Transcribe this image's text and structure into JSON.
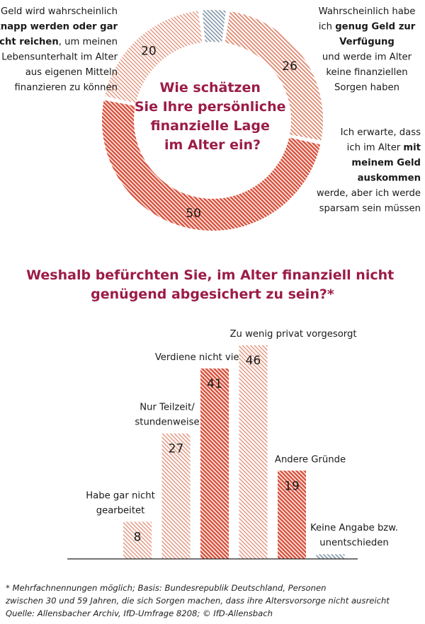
{
  "colors": {
    "accent": "#9b1c47",
    "bar_red": "#d9543f",
    "bar_light": "#e3967f",
    "bar_lighter": "#eab29f",
    "gray_blue": "#7f96a8"
  },
  "chart_data": [
    {
      "type": "pie",
      "title": "Wie schätzen Sie Ihre persönliche finanzielle Lage im Alter ein?",
      "title_lines": [
        "Wie schätzen",
        "Sie Ihre persönliche",
        "finanzielle Lage",
        "im Alter ein?"
      ],
      "slices": [
        {
          "key": "genug",
          "value": 26,
          "label_lines": [
            [
              {
                "t": "Wahrscheinlich habe",
                "b": false
              }
            ],
            [
              {
                "t": "ich ",
                "b": false
              },
              {
                "t": "genug Geld zur",
                "b": true
              }
            ],
            [
              {
                "t": "Verfügung",
                "b": true
              }
            ],
            [
              {
                "t": "und werde im Alter",
                "b": false
              }
            ],
            [
              {
                "t": "keine finanziellen",
                "b": false
              }
            ],
            [
              {
                "t": "Sorgen haben",
                "b": false
              }
            ]
          ]
        },
        {
          "key": "auskommen",
          "value": 50,
          "label_lines": [
            [
              {
                "t": "Ich erwarte, dass",
                "b": false
              }
            ],
            [
              {
                "t": "ich im Alter ",
                "b": false
              },
              {
                "t": "mit",
                "b": true
              }
            ],
            [
              {
                "t": "meinem Geld",
                "b": true
              }
            ],
            [
              {
                "t": "auskommen",
                "b": true
              }
            ],
            [
              {
                "t": "werde, aber ich werde",
                "b": false
              }
            ],
            [
              {
                "t": "sparsam sein müssen",
                "b": false
              }
            ]
          ]
        },
        {
          "key": "knapp",
          "value": 20,
          "label_lines": [
            [
              {
                "t": "Das Geld wird wahrscheinlich",
                "b": false
              }
            ],
            [
              {
                "t": "knapp werden oder gar",
                "b": true
              }
            ],
            [
              {
                "t": "nicht reichen",
                "b": true
              },
              {
                "t": ", um meinen",
                "b": false
              }
            ],
            [
              {
                "t": "Lebensunterhalt im Alter",
                "b": false
              }
            ],
            [
              {
                "t": "aus eigenen Mitteln",
                "b": false
              }
            ],
            [
              {
                "t": "finanzieren zu können",
                "b": false
              }
            ]
          ]
        },
        {
          "key": "keine_angabe",
          "value": 4,
          "label_lines": []
        }
      ]
    },
    {
      "type": "bar",
      "title": "Weshalb befürchten Sie, im Alter finanziell nicht genügend abgesichert zu sein?*",
      "title_lines": [
        "Weshalb befürchten Sie, im Alter finanziell nicht",
        "genügend abgesichert zu sein?*"
      ],
      "ylim": [
        0,
        50
      ],
      "bars": [
        {
          "key": "nie_gearbeitet",
          "value": 8,
          "label_lines": [
            "Habe gar nicht",
            "gearbeitet"
          ]
        },
        {
          "key": "teilzeit",
          "value": 27,
          "label_lines": [
            "Nur Teilzeit/",
            "stundenweise"
          ]
        },
        {
          "key": "verdiene",
          "value": 41,
          "label_lines": [
            "Verdiene nicht viel"
          ]
        },
        {
          "key": "vorgesorgt",
          "value": 46,
          "label_lines": [
            "Zu wenig privat vorgesorgt"
          ]
        },
        {
          "key": "andere",
          "value": 19,
          "label_lines": [
            "Andere Gründe"
          ]
        },
        {
          "key": "keine_angabe",
          "value": 1,
          "label_lines": [
            "Keine Angabe bzw.",
            "unentschieden"
          ],
          "hide_value": true
        }
      ]
    }
  ],
  "footnote": {
    "line1": "* Mehrfachnennungen möglich; Basis: Bundesrepublik Deutschland, Personen",
    "line2": "zwischen 30 und 59 Jahren, die sich Sorgen machen, dass ihre Altersvorsorge nicht ausreicht",
    "line3": "Quelle: Allensbacher Archiv, IfD-Umfrage 8208; © IfD-Allensbach"
  }
}
